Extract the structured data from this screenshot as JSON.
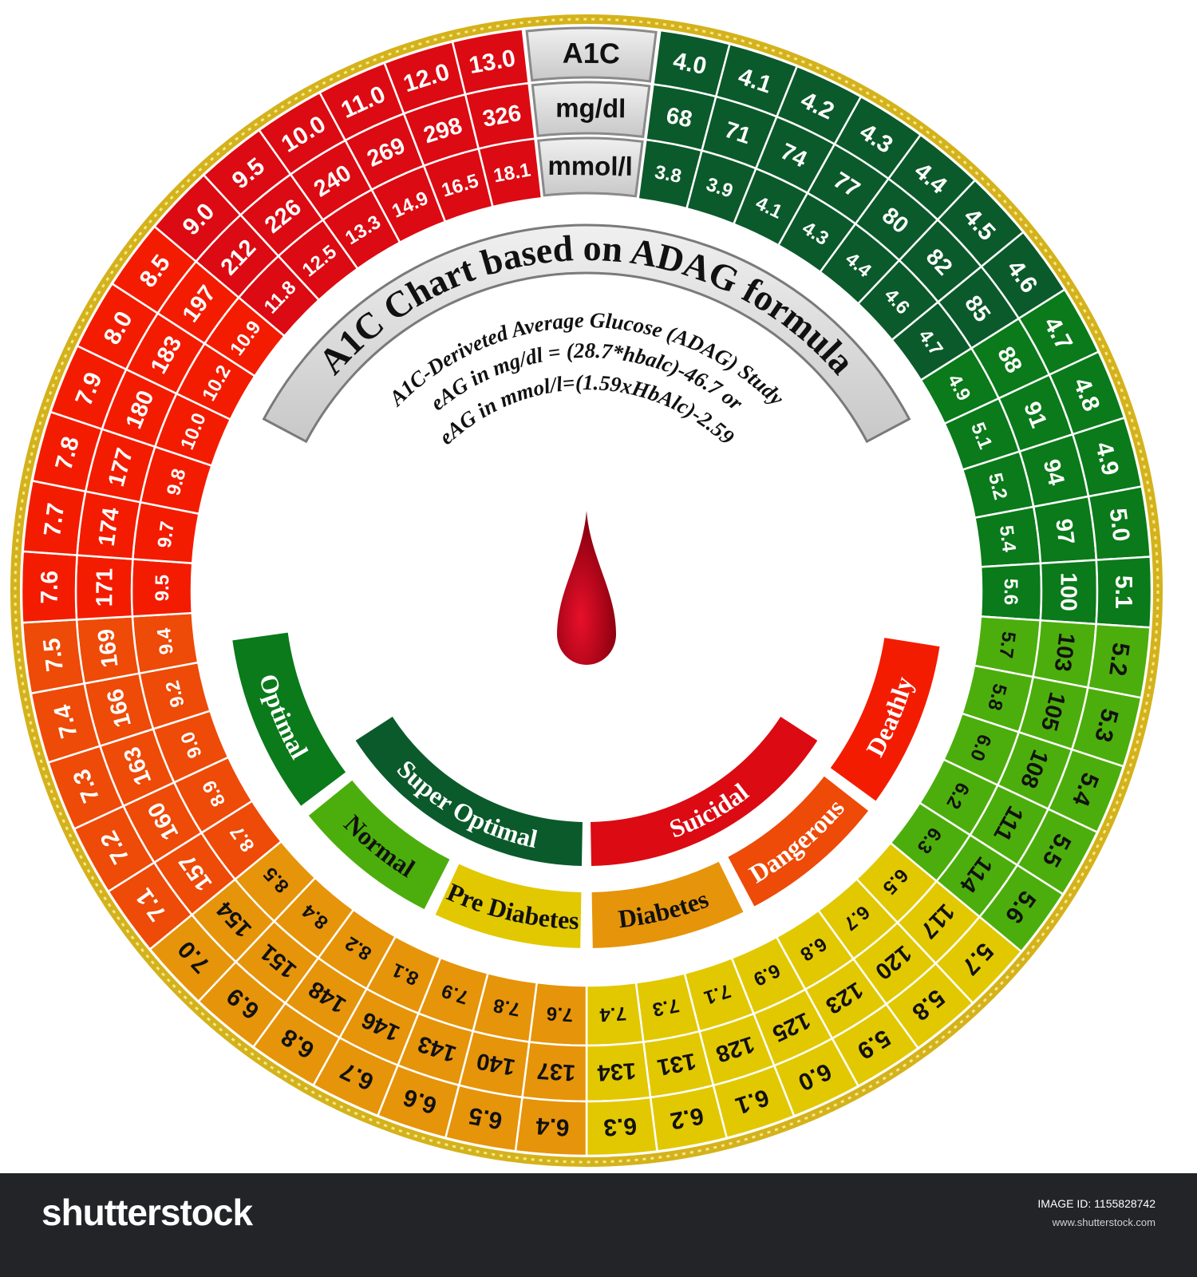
{
  "header": {
    "a1c": "A1C",
    "mgdl": "mg/dl",
    "mmol": "mmol/l",
    "color": "#dcdcdc"
  },
  "title": "A1C Chart based on ADAG formula",
  "formula_lines": [
    "A1C-Deriveted Average Glucose (ADAG) Study",
    "eAG in mg/dl = (28.7*hbalc)-46.7 or",
    "eAG in mmol/l=(1.59xHbAlc)-2.59"
  ],
  "colors": {
    "dark_green": "#0b5a2b",
    "green": "#0a7a1a",
    "light_green": "#4cae0c",
    "yellow": "#e2c800",
    "orange": "#e6940a",
    "orange_red": "#ee4a08",
    "red": "#f41c00",
    "deep_red": "#dc0a12",
    "gold_border": "#d4b21c",
    "drop": "#c8001a"
  },
  "right_cells": [
    {
      "a1c": "4.0",
      "mgdl": "68",
      "mmol": "3.8",
      "color": "dark_green"
    },
    {
      "a1c": "4.1",
      "mgdl": "71",
      "mmol": "3.9",
      "color": "dark_green"
    },
    {
      "a1c": "4.2",
      "mgdl": "74",
      "mmol": "4.1",
      "color": "dark_green"
    },
    {
      "a1c": "4.3",
      "mgdl": "77",
      "mmol": "4.3",
      "color": "dark_green"
    },
    {
      "a1c": "4.4",
      "mgdl": "80",
      "mmol": "4.4",
      "color": "dark_green"
    },
    {
      "a1c": "4.5",
      "mgdl": "82",
      "mmol": "4.6",
      "color": "dark_green"
    },
    {
      "a1c": "4.6",
      "mgdl": "85",
      "mmol": "4.7",
      "color": "dark_green"
    },
    {
      "a1c": "4.7",
      "mgdl": "88",
      "mmol": "4.9",
      "color": "green"
    },
    {
      "a1c": "4.8",
      "mgdl": "91",
      "mmol": "5.1",
      "color": "green"
    },
    {
      "a1c": "4.9",
      "mgdl": "94",
      "mmol": "5.2",
      "color": "green"
    },
    {
      "a1c": "5.0",
      "mgdl": "97",
      "mmol": "5.4",
      "color": "green"
    },
    {
      "a1c": "5.1",
      "mgdl": "100",
      "mmol": "5.6",
      "color": "green"
    },
    {
      "a1c": "5.2",
      "mgdl": "103",
      "mmol": "5.7",
      "color": "light_green"
    },
    {
      "a1c": "5.3",
      "mgdl": "105",
      "mmol": "5.8",
      "color": "light_green"
    },
    {
      "a1c": "5.4",
      "mgdl": "108",
      "mmol": "6.0",
      "color": "light_green"
    },
    {
      "a1c": "5.5",
      "mgdl": "111",
      "mmol": "6.2",
      "color": "light_green"
    },
    {
      "a1c": "5.6",
      "mgdl": "114",
      "mmol": "6.3",
      "color": "light_green"
    },
    {
      "a1c": "5.7",
      "mgdl": "117",
      "mmol": "6.5",
      "color": "yellow"
    },
    {
      "a1c": "5.8",
      "mgdl": "120",
      "mmol": "6.7",
      "color": "yellow"
    },
    {
      "a1c": "5.9",
      "mgdl": "123",
      "mmol": "6.8",
      "color": "yellow"
    },
    {
      "a1c": "6.0",
      "mgdl": "125",
      "mmol": "6.9",
      "color": "yellow"
    },
    {
      "a1c": "6.1",
      "mgdl": "128",
      "mmol": "7.1",
      "color": "yellow"
    },
    {
      "a1c": "6.2",
      "mgdl": "131",
      "mmol": "7.3",
      "color": "yellow"
    },
    {
      "a1c": "6.3",
      "mgdl": "134",
      "mmol": "7.4",
      "color": "yellow"
    }
  ],
  "left_cells": [
    {
      "a1c": "6.4",
      "mgdl": "137",
      "mmol": "7.6",
      "color": "orange"
    },
    {
      "a1c": "6.5",
      "mgdl": "140",
      "mmol": "7.8",
      "color": "orange"
    },
    {
      "a1c": "6.6",
      "mgdl": "143",
      "mmol": "7.9",
      "color": "orange"
    },
    {
      "a1c": "6.7",
      "mgdl": "146",
      "mmol": "8.1",
      "color": "orange"
    },
    {
      "a1c": "6.8",
      "mgdl": "148",
      "mmol": "8.2",
      "color": "orange"
    },
    {
      "a1c": "6.9",
      "mgdl": "151",
      "mmol": "8.4",
      "color": "orange"
    },
    {
      "a1c": "7.0",
      "mgdl": "154",
      "mmol": "8.5",
      "color": "orange"
    },
    {
      "a1c": "7.1",
      "mgdl": "157",
      "mmol": "8.7",
      "color": "orange_red"
    },
    {
      "a1c": "7.2",
      "mgdl": "160",
      "mmol": "8.9",
      "color": "orange_red"
    },
    {
      "a1c": "7.3",
      "mgdl": "163",
      "mmol": "9.0",
      "color": "orange_red"
    },
    {
      "a1c": "7.4",
      "mgdl": "166",
      "mmol": "9.2",
      "color": "orange_red"
    },
    {
      "a1c": "7.5",
      "mgdl": "169",
      "mmol": "9.4",
      "color": "orange_red"
    },
    {
      "a1c": "7.6",
      "mgdl": "171",
      "mmol": "9.5",
      "color": "red"
    },
    {
      "a1c": "7.7",
      "mgdl": "174",
      "mmol": "9.7",
      "color": "red"
    },
    {
      "a1c": "7.8",
      "mgdl": "177",
      "mmol": "9.8",
      "color": "red"
    },
    {
      "a1c": "7.9",
      "mgdl": "180",
      "mmol": "10.0",
      "color": "red"
    },
    {
      "a1c": "8.0",
      "mgdl": "183",
      "mmol": "10.2",
      "color": "red"
    },
    {
      "a1c": "8.5",
      "mgdl": "197",
      "mmol": "10.9",
      "color": "red"
    },
    {
      "a1c": "9.0",
      "mgdl": "212",
      "mmol": "11.8",
      "color": "deep_red"
    },
    {
      "a1c": "9.5",
      "mgdl": "226",
      "mmol": "12.5",
      "color": "deep_red"
    },
    {
      "a1c": "10.0",
      "mgdl": "240",
      "mmol": "13.3",
      "color": "deep_red"
    },
    {
      "a1c": "11.0",
      "mgdl": "269",
      "mmol": "14.9",
      "color": "deep_red"
    },
    {
      "a1c": "12.0",
      "mgdl": "298",
      "mmol": "16.5",
      "color": "deep_red"
    },
    {
      "a1c": "13.0",
      "mgdl": "326",
      "mmol": "18.1",
      "color": "deep_red"
    }
  ],
  "categories_outer": [
    {
      "label": "Optimal",
      "color": "green"
    },
    {
      "label": "Normal",
      "color": "light_green"
    },
    {
      "label": "Pre Diabetes",
      "color": "yellow"
    },
    {
      "label": "Diabetes",
      "color": "orange"
    },
    {
      "label": "Dangerous",
      "color": "orange_red"
    },
    {
      "label": "Deathly",
      "color": "red"
    }
  ],
  "categories_inner": [
    {
      "label": "Super Optimal",
      "color": "dark_green"
    },
    {
      "label": "Suicidal",
      "color": "deep_red"
    }
  ],
  "footer": {
    "logo": "shutterstock",
    "image_id": "IMAGE ID: 1155828742",
    "site": "www.shutterstock.com"
  }
}
